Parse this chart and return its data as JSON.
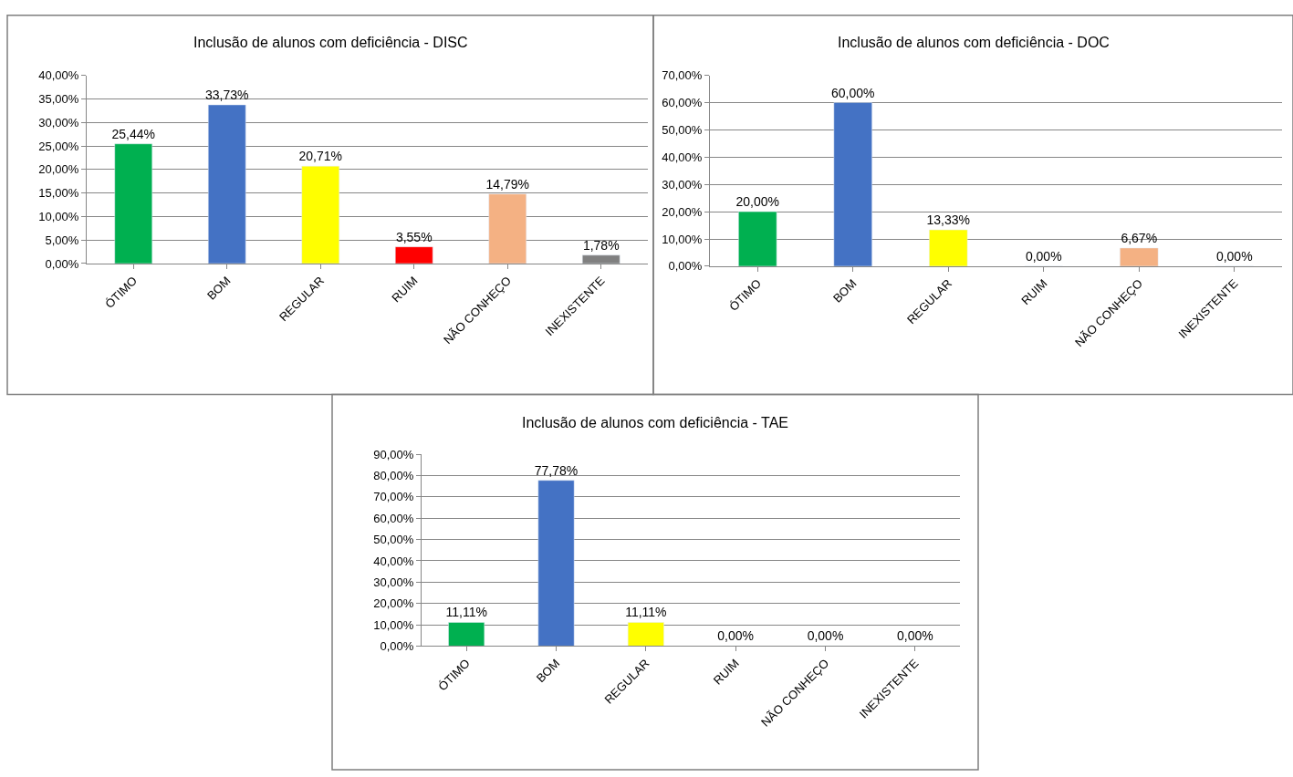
{
  "chart_data": [
    {
      "type": "bar",
      "title": "Inclusão de alunos com deficiência - DISC",
      "categories": [
        "ÓTIMO",
        "BOM",
        "REGULAR",
        "RUIM",
        "NÃO CONHEÇO",
        "INEXISTENTE"
      ],
      "values": [
        25.44,
        33.73,
        20.71,
        3.55,
        14.79,
        1.78
      ],
      "colors": [
        "#00b050",
        "#4472c4",
        "#ffff00",
        "#ff0000",
        "#f4b183",
        "#808080"
      ],
      "value_labels": [
        "25,44%",
        "33,73%",
        "20,71%",
        "3,55%",
        "14,79%",
        "1,78%"
      ],
      "ylim": [
        0,
        40
      ],
      "yticks": [
        {
          "value": 0,
          "label": "0,00%"
        },
        {
          "value": 5,
          "label": "5,00%"
        },
        {
          "value": 10,
          "label": "10,00%"
        },
        {
          "value": 15,
          "label": "15,00%"
        },
        {
          "value": 20,
          "label": "20,00%"
        },
        {
          "value": 25,
          "label": "25,00%"
        },
        {
          "value": 30,
          "label": "30,00%"
        },
        {
          "value": 35,
          "label": "35,00%"
        },
        {
          "value": 40,
          "label": "40,00%"
        }
      ],
      "grid": "y"
    },
    {
      "type": "bar",
      "title": "Inclusão de alunos com deficiência - DOC",
      "categories": [
        "ÓTIMO",
        "BOM",
        "REGULAR",
        "RUIM",
        "NÃO CONHEÇO",
        "INEXISTENTE"
      ],
      "values": [
        20.0,
        60.0,
        13.33,
        0.0,
        6.67,
        0.0
      ],
      "colors": [
        "#00b050",
        "#4472c4",
        "#ffff00",
        null,
        "#f4b183",
        null
      ],
      "value_labels": [
        "20,00%",
        "60,00%",
        "13,33%",
        "0,00%",
        "6,67%",
        "0,00%"
      ],
      "ylim": [
        0,
        70
      ],
      "yticks": [
        {
          "value": 0,
          "label": "0,00%"
        },
        {
          "value": 10,
          "label": "10,00%"
        },
        {
          "value": 20,
          "label": "20,00%"
        },
        {
          "value": 30,
          "label": "30,00%"
        },
        {
          "value": 40,
          "label": "40,00%"
        },
        {
          "value": 50,
          "label": "50,00%"
        },
        {
          "value": 60,
          "label": "60,00%"
        },
        {
          "value": 70,
          "label": "70,00%"
        }
      ],
      "grid": "y"
    },
    {
      "type": "bar",
      "title": "Inclusão de alunos com deficiência - TAE",
      "categories": [
        "ÓTIMO",
        "BOM",
        "REGULAR",
        "RUIM",
        "NÃO CONHEÇO",
        "INEXISTENTE"
      ],
      "values": [
        11.11,
        77.78,
        11.11,
        0.0,
        0.0,
        0.0
      ],
      "colors": [
        "#00b050",
        "#4472c4",
        "#ffff00",
        null,
        null,
        null
      ],
      "value_labels": [
        "11,11%",
        "77,78%",
        "11,11%",
        "0,00%",
        "0,00%",
        "0,00%"
      ],
      "ylim": [
        0,
        90
      ],
      "yticks": [
        {
          "value": 0,
          "label": "0,00%"
        },
        {
          "value": 10,
          "label": "10,00%"
        },
        {
          "value": 20,
          "label": "20,00%"
        },
        {
          "value": 30,
          "label": "30,00%"
        },
        {
          "value": 40,
          "label": "40,00%"
        },
        {
          "value": 50,
          "label": "50,00%"
        },
        {
          "value": 60,
          "label": "60,00%"
        },
        {
          "value": 70,
          "label": "70,00%"
        },
        {
          "value": 80,
          "label": "80,00%"
        },
        {
          "value": 90,
          "label": "90,00%"
        }
      ],
      "grid": "y"
    }
  ]
}
